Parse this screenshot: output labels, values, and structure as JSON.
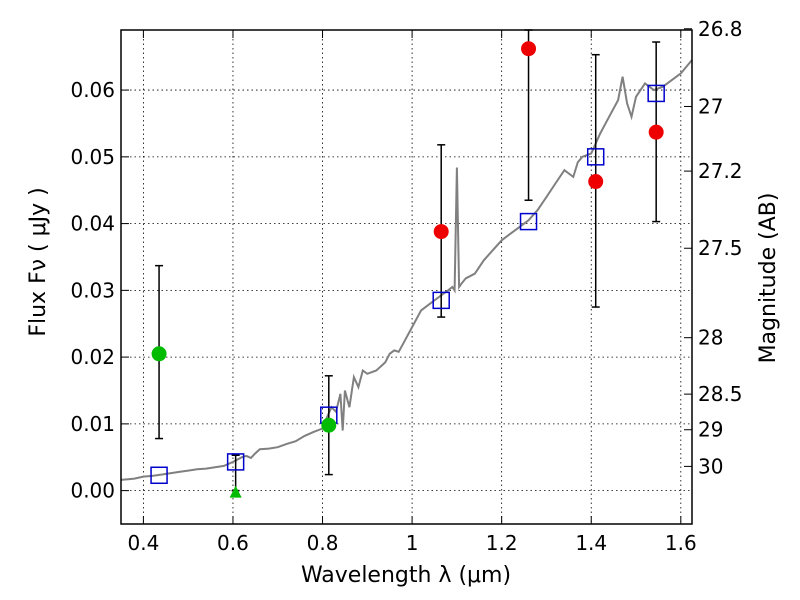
{
  "chart_data": {
    "type": "scatter",
    "xlabel": "Wavelength  λ (μm)",
    "ylabel": "Flux  Fν  ( μJy )",
    "ylabel_right": "Magnitude (AB)",
    "xlim": [
      0.35,
      1.625
    ],
    "ylim": [
      -0.005,
      0.069
    ],
    "grid": true,
    "x_ticks": [
      {
        "value": 0.4,
        "label": "0.4"
      },
      {
        "value": 0.6,
        "label": "0.6"
      },
      {
        "value": 0.8,
        "label": "0.8"
      },
      {
        "value": 1.0,
        "label": "1"
      },
      {
        "value": 1.2,
        "label": "1.2"
      },
      {
        "value": 1.4,
        "label": "1.4"
      },
      {
        "value": 1.6,
        "label": "1.6"
      }
    ],
    "y_ticks": [
      {
        "value": 0.0,
        "label": "0.00"
      },
      {
        "value": 0.01,
        "label": "0.01"
      },
      {
        "value": 0.02,
        "label": "0.02"
      },
      {
        "value": 0.03,
        "label": "0.03"
      },
      {
        "value": 0.04,
        "label": "0.04"
      },
      {
        "value": 0.05,
        "label": "0.05"
      },
      {
        "value": 0.06,
        "label": "0.06"
      }
    ],
    "right_ticks": [
      {
        "mag": 26.8,
        "label": "26.8"
      },
      {
        "mag": 27.0,
        "label": "27"
      },
      {
        "mag": 27.2,
        "label": "27.2"
      },
      {
        "mag": 27.5,
        "label": "27.5"
      },
      {
        "mag": 28.0,
        "label": "28"
      },
      {
        "mag": 28.5,
        "label": "28.5"
      },
      {
        "mag": 29.0,
        "label": "29"
      },
      {
        "mag": 30.0,
        "label": "30"
      }
    ],
    "model_spectrum": {
      "color": "#808080",
      "points": [
        [
          0.35,
          0.0016
        ],
        [
          0.38,
          0.0018
        ],
        [
          0.4,
          0.0021
        ],
        [
          0.42,
          0.0022
        ],
        [
          0.44,
          0.0024
        ],
        [
          0.46,
          0.0026
        ],
        [
          0.48,
          0.0028
        ],
        [
          0.5,
          0.003
        ],
        [
          0.52,
          0.0032
        ],
        [
          0.54,
          0.0033
        ],
        [
          0.56,
          0.0035
        ],
        [
          0.58,
          0.0037
        ],
        [
          0.6,
          0.0043
        ],
        [
          0.62,
          0.005
        ],
        [
          0.63,
          0.0052
        ],
        [
          0.64,
          0.0049
        ],
        [
          0.65,
          0.0056
        ],
        [
          0.66,
          0.0062
        ],
        [
          0.68,
          0.0063
        ],
        [
          0.7,
          0.0065
        ],
        [
          0.72,
          0.007
        ],
        [
          0.74,
          0.0074
        ],
        [
          0.76,
          0.0082
        ],
        [
          0.78,
          0.0088
        ],
        [
          0.8,
          0.0093
        ],
        [
          0.81,
          0.011
        ],
        [
          0.82,
          0.0125
        ],
        [
          0.83,
          0.0118
        ],
        [
          0.84,
          0.0145
        ],
        [
          0.845,
          0.009
        ],
        [
          0.85,
          0.015
        ],
        [
          0.86,
          0.0125
        ],
        [
          0.87,
          0.017
        ],
        [
          0.88,
          0.0155
        ],
        [
          0.89,
          0.018
        ],
        [
          0.9,
          0.0175
        ],
        [
          0.92,
          0.018
        ],
        [
          0.94,
          0.0192
        ],
        [
          0.95,
          0.0205
        ],
        [
          0.96,
          0.021
        ],
        [
          0.97,
          0.0208
        ],
        [
          0.98,
          0.022
        ],
        [
          1.0,
          0.0245
        ],
        [
          1.02,
          0.027
        ],
        [
          1.04,
          0.028
        ],
        [
          1.06,
          0.029
        ],
        [
          1.07,
          0.0295
        ],
        [
          1.08,
          0.03
        ],
        [
          1.09,
          0.0305
        ],
        [
          1.095,
          0.03
        ],
        [
          1.1,
          0.0484
        ],
        [
          1.105,
          0.0305
        ],
        [
          1.11,
          0.031
        ],
        [
          1.12,
          0.0318
        ],
        [
          1.14,
          0.0325
        ],
        [
          1.16,
          0.0345
        ],
        [
          1.18,
          0.036
        ],
        [
          1.2,
          0.0375
        ],
        [
          1.22,
          0.0385
        ],
        [
          1.24,
          0.0395
        ],
        [
          1.26,
          0.0405
        ],
        [
          1.28,
          0.042
        ],
        [
          1.3,
          0.044
        ],
        [
          1.32,
          0.046
        ],
        [
          1.34,
          0.048
        ],
        [
          1.36,
          0.047
        ],
        [
          1.37,
          0.0492
        ],
        [
          1.38,
          0.05
        ],
        [
          1.4,
          0.0505
        ],
        [
          1.42,
          0.0535
        ],
        [
          1.44,
          0.056
        ],
        [
          1.46,
          0.0585
        ],
        [
          1.47,
          0.062
        ],
        [
          1.48,
          0.058
        ],
        [
          1.49,
          0.056
        ],
        [
          1.5,
          0.059
        ],
        [
          1.52,
          0.061
        ],
        [
          1.54,
          0.06
        ],
        [
          1.56,
          0.0605
        ],
        [
          1.58,
          0.0615
        ],
        [
          1.6,
          0.0625
        ],
        [
          1.625,
          0.0645
        ]
      ]
    },
    "series": [
      {
        "marker": "square-open",
        "color": "#0000cc",
        "points": [
          {
            "x": 0.435,
            "y": 0.0023
          },
          {
            "x": 0.606,
            "y": 0.0043
          },
          {
            "x": 0.814,
            "y": 0.0113
          },
          {
            "x": 1.065,
            "y": 0.0285
          },
          {
            "x": 1.26,
            "y": 0.0403
          },
          {
            "x": 1.41,
            "y": 0.05
          },
          {
            "x": 1.545,
            "y": 0.0595
          }
        ]
      },
      {
        "marker": "circle",
        "color": "#00bb00",
        "points": [
          {
            "x": 0.435,
            "y": 0.0205,
            "yerr_low": 0.0078,
            "yerr_high": 0.0337
          },
          {
            "x": 0.814,
            "y": 0.0098,
            "yerr_low": 0.0024,
            "yerr_high": 0.0172
          }
        ]
      },
      {
        "marker": "triangle",
        "color": "#00bb00",
        "points": [
          {
            "x": 0.606,
            "y": -0.0003,
            "yerr_low": 0.0,
            "yerr_high": 0.0053
          }
        ]
      },
      {
        "marker": "circle",
        "color": "#ee0000",
        "points": [
          {
            "x": 1.065,
            "y": 0.0388,
            "yerr_low": 0.026,
            "yerr_high": 0.0518
          },
          {
            "x": 1.26,
            "y": 0.0662,
            "yerr_low": 0.0435,
            "yerr_high": 0.069
          },
          {
            "x": 1.41,
            "y": 0.0463,
            "yerr_low": 0.0275,
            "yerr_high": 0.0653
          },
          {
            "x": 1.545,
            "y": 0.0537,
            "yerr_low": 0.0403,
            "yerr_high": 0.0672
          }
        ]
      }
    ]
  }
}
